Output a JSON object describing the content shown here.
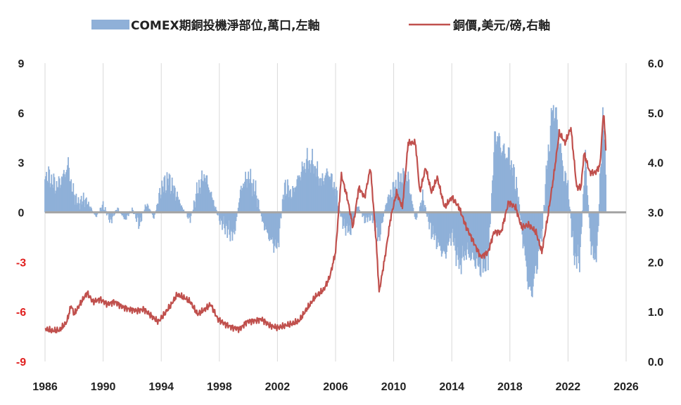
{
  "colors": {
    "bars": "#8fb0d8",
    "price_line": "#c0504d",
    "zero_line": "#a6a6a6",
    "grid": "#d9d9d9",
    "left_negative_ticks": "#e0201f",
    "tick_text": "#222222"
  },
  "chart_data": {
    "type": "bar+line",
    "x_ticks": [
      "1986",
      "1990",
      "1994",
      "1998",
      "2002",
      "2006",
      "2010",
      "2014",
      "2018",
      "2022",
      "2026"
    ],
    "x_range": [
      1986,
      2026
    ],
    "left_axis": {
      "ylim": [
        -9,
        9
      ],
      "ticks": [
        "9",
        "6",
        "3",
        "0",
        "-3",
        "-6",
        "-9"
      ]
    },
    "right_axis": {
      "ylim": [
        0.0,
        6.0
      ],
      "ticks": [
        "6.0",
        "5.0",
        "4.0",
        "3.0",
        "2.0",
        "1.0",
        "0.0"
      ]
    },
    "legend": {
      "position": "top-center",
      "items": [
        {
          "label": "COMEX期銅投機淨部位,萬口,左軸",
          "kind": "bar"
        },
        {
          "label": "銅價,美元/磅,右軸",
          "kind": "line"
        }
      ]
    },
    "grid": "vertical",
    "series": [
      {
        "name": "COMEX期銅投機淨部位,萬口,左軸",
        "kind": "bar",
        "axis": "left",
        "points": [
          [
            1986.0,
            2.6
          ],
          [
            1986.4,
            2.2
          ],
          [
            1986.8,
            1.7
          ],
          [
            1987.2,
            2.3
          ],
          [
            1987.6,
            3.1
          ],
          [
            1987.9,
            1.4
          ],
          [
            1988.3,
            0.6
          ],
          [
            1988.7,
            0.9
          ],
          [
            1989.1,
            0.4
          ],
          [
            1989.5,
            -0.3
          ],
          [
            1990.0,
            0.5
          ],
          [
            1990.5,
            -0.6
          ],
          [
            1991.0,
            0.3
          ],
          [
            1991.5,
            -0.5
          ],
          [
            1992.0,
            0.2
          ],
          [
            1992.5,
            -0.8
          ],
          [
            1993.0,
            0.6
          ],
          [
            1993.5,
            -0.4
          ],
          [
            1994.0,
            1.6
          ],
          [
            1994.5,
            2.2
          ],
          [
            1995.0,
            1.3
          ],
          [
            1995.5,
            0.2
          ],
          [
            1996.0,
            -0.5
          ],
          [
            1996.5,
            1.5
          ],
          [
            1997.0,
            2.5
          ],
          [
            1997.5,
            1.0
          ],
          [
            1998.0,
            -0.5
          ],
          [
            1998.5,
            -1.1
          ],
          [
            1999.0,
            -1.6
          ],
          [
            1999.5,
            1.6
          ],
          [
            2000.0,
            2.4
          ],
          [
            2000.5,
            1.4
          ],
          [
            2001.0,
            -0.7
          ],
          [
            2001.5,
            -1.8
          ],
          [
            2002.0,
            -2.4
          ],
          [
            2002.5,
            1.8
          ],
          [
            2003.0,
            1.2
          ],
          [
            2003.5,
            2.4
          ],
          [
            2004.0,
            3.4
          ],
          [
            2004.5,
            3.2
          ],
          [
            2005.0,
            2.0
          ],
          [
            2005.5,
            2.7
          ],
          [
            2006.0,
            1.5
          ],
          [
            2006.5,
            -0.8
          ],
          [
            2007.0,
            -1.3
          ],
          [
            2007.5,
            0.5
          ],
          [
            2008.0,
            -0.5
          ],
          [
            2008.5,
            -0.3
          ],
          [
            2009.0,
            -1.8
          ],
          [
            2009.5,
            0.7
          ],
          [
            2010.0,
            1.6
          ],
          [
            2010.5,
            2.3
          ],
          [
            2011.0,
            2.2
          ],
          [
            2011.5,
            -0.6
          ],
          [
            2012.0,
            1.0
          ],
          [
            2012.5,
            -1.0
          ],
          [
            2013.0,
            -2.0
          ],
          [
            2013.5,
            -2.9
          ],
          [
            2014.0,
            -1.4
          ],
          [
            2014.5,
            -3.5
          ],
          [
            2015.0,
            -2.6
          ],
          [
            2015.5,
            -3.1
          ],
          [
            2016.0,
            -3.7
          ],
          [
            2016.5,
            -3.2
          ],
          [
            2017.0,
            5.4
          ],
          [
            2017.5,
            4.1
          ],
          [
            2018.0,
            3.6
          ],
          [
            2018.5,
            1.6
          ],
          [
            2019.0,
            -2.6
          ],
          [
            2019.4,
            -5.7
          ],
          [
            2019.8,
            -3.8
          ],
          [
            2020.2,
            -1.4
          ],
          [
            2020.6,
            3.6
          ],
          [
            2021.0,
            7.3
          ],
          [
            2021.3,
            5.6
          ],
          [
            2021.7,
            2.6
          ],
          [
            2022.0,
            1.8
          ],
          [
            2022.4,
            -2.8
          ],
          [
            2022.8,
            -3.3
          ],
          [
            2023.2,
            3.6
          ],
          [
            2023.6,
            -2.6
          ],
          [
            2024.0,
            -3.0
          ],
          [
            2024.4,
            6.6
          ],
          [
            2024.6,
            2.6
          ]
        ]
      },
      {
        "name": "銅價,美元/磅,右軸",
        "kind": "line",
        "axis": "right",
        "points": [
          [
            1986.0,
            0.66
          ],
          [
            1986.5,
            0.62
          ],
          [
            1987.0,
            0.63
          ],
          [
            1987.5,
            0.8
          ],
          [
            1987.8,
            1.13
          ],
          [
            1988.0,
            0.95
          ],
          [
            1988.5,
            1.2
          ],
          [
            1988.9,
            1.38
          ],
          [
            1989.3,
            1.2
          ],
          [
            1989.8,
            1.25
          ],
          [
            1990.3,
            1.15
          ],
          [
            1990.8,
            1.2
          ],
          [
            1991.3,
            1.1
          ],
          [
            1991.8,
            1.05
          ],
          [
            1992.3,
            1.02
          ],
          [
            1992.8,
            1.05
          ],
          [
            1993.3,
            0.92
          ],
          [
            1993.8,
            0.8
          ],
          [
            1994.2,
            0.95
          ],
          [
            1994.7,
            1.15
          ],
          [
            1995.1,
            1.35
          ],
          [
            1995.6,
            1.28
          ],
          [
            1996.0,
            1.2
          ],
          [
            1996.5,
            0.95
          ],
          [
            1997.0,
            1.05
          ],
          [
            1997.4,
            1.15
          ],
          [
            1997.9,
            0.85
          ],
          [
            1998.4,
            0.75
          ],
          [
            1998.9,
            0.68
          ],
          [
            1999.4,
            0.65
          ],
          [
            1999.9,
            0.8
          ],
          [
            2000.5,
            0.82
          ],
          [
            2000.9,
            0.85
          ],
          [
            2001.5,
            0.72
          ],
          [
            2002.0,
            0.68
          ],
          [
            2002.5,
            0.72
          ],
          [
            2003.0,
            0.76
          ],
          [
            2003.5,
            0.82
          ],
          [
            2004.0,
            1.05
          ],
          [
            2004.6,
            1.3
          ],
          [
            2005.2,
            1.45
          ],
          [
            2005.6,
            1.7
          ],
          [
            2006.0,
            2.2
          ],
          [
            2006.4,
            3.75
          ],
          [
            2006.8,
            3.3
          ],
          [
            2007.2,
            2.7
          ],
          [
            2007.6,
            3.5
          ],
          [
            2008.0,
            3.3
          ],
          [
            2008.4,
            3.9
          ],
          [
            2008.8,
            2.4
          ],
          [
            2009.0,
            1.4
          ],
          [
            2009.4,
            2.1
          ],
          [
            2009.8,
            2.9
          ],
          [
            2010.2,
            3.4
          ],
          [
            2010.6,
            3.1
          ],
          [
            2011.0,
            4.4
          ],
          [
            2011.5,
            4.4
          ],
          [
            2011.8,
            3.4
          ],
          [
            2012.2,
            3.9
          ],
          [
            2012.6,
            3.4
          ],
          [
            2013.0,
            3.7
          ],
          [
            2013.5,
            3.1
          ],
          [
            2014.0,
            3.3
          ],
          [
            2014.5,
            3.1
          ],
          [
            2015.0,
            2.7
          ],
          [
            2015.5,
            2.4
          ],
          [
            2016.0,
            2.1
          ],
          [
            2016.5,
            2.2
          ],
          [
            2016.9,
            2.6
          ],
          [
            2017.4,
            2.6
          ],
          [
            2017.9,
            3.2
          ],
          [
            2018.4,
            3.1
          ],
          [
            2018.8,
            2.7
          ],
          [
            2019.3,
            2.75
          ],
          [
            2019.8,
            2.6
          ],
          [
            2020.2,
            2.2
          ],
          [
            2020.6,
            2.9
          ],
          [
            2021.0,
            3.7
          ],
          [
            2021.4,
            4.6
          ],
          [
            2021.8,
            4.4
          ],
          [
            2022.2,
            4.7
          ],
          [
            2022.6,
            3.5
          ],
          [
            2022.9,
            3.5
          ],
          [
            2023.1,
            4.2
          ],
          [
            2023.5,
            3.8
          ],
          [
            2023.9,
            3.8
          ],
          [
            2024.2,
            3.95
          ],
          [
            2024.45,
            5.05
          ],
          [
            2024.6,
            4.3
          ]
        ]
      }
    ]
  }
}
